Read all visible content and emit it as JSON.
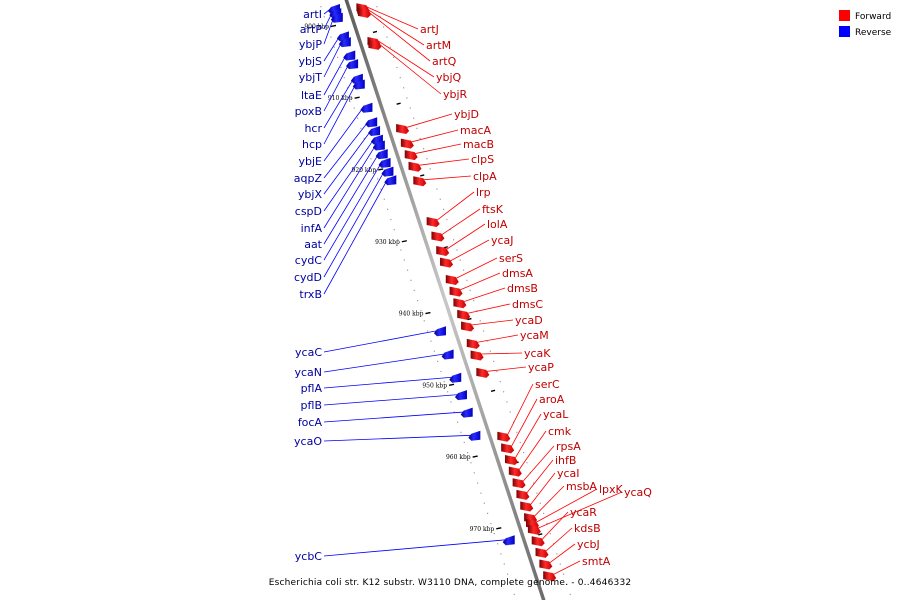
{
  "caption": "Escherichia coli str. K12 substr. W3110 DNA, complete genome. - 0..4646332",
  "legend": [
    {
      "label": "Forward",
      "color": "#ff0000"
    },
    {
      "label": "Reverse",
      "color": "#0000ff"
    }
  ],
  "colors": {
    "forward": "#ff0000",
    "reverse": "#0000ff",
    "backbone": "#808080"
  },
  "ticks": [
    {
      "label": "900 kbp",
      "frac": 0.0
    },
    {
      "label": "910 kbp",
      "frac": 0.1389
    },
    {
      "label": "920 kbp",
      "frac": 0.2778
    },
    {
      "label": "930 kbp",
      "frac": 0.4167
    },
    {
      "label": "940 kbp",
      "frac": 0.5556
    },
    {
      "label": "950 kbp",
      "frac": 0.6944
    },
    {
      "label": "960 kbp",
      "frac": 0.8333
    },
    {
      "label": "970 kbp",
      "frac": 0.9722
    }
  ],
  "reverse_genes": [
    {
      "name": "artI",
      "pos": 0.005
    },
    {
      "name": "artP",
      "pos": 0.012
    },
    {
      "name": "ybjP",
      "pos": 0.02
    },
    {
      "name": "ybjS",
      "pos": 0.052
    },
    {
      "name": "ybjT",
      "pos": 0.062
    },
    {
      "name": "ltaE",
      "pos": 0.085
    },
    {
      "name": "poxB",
      "pos": 0.1
    },
    {
      "name": "hcr",
      "pos": 0.125
    },
    {
      "name": "hcp",
      "pos": 0.135
    },
    {
      "name": "ybjE",
      "pos": 0.175
    },
    {
      "name": "aqpZ",
      "pos": 0.2
    },
    {
      "name": "ybjX",
      "pos": 0.215
    },
    {
      "name": "cspD",
      "pos": 0.23
    },
    {
      "name": "infA",
      "pos": 0.24
    },
    {
      "name": "aat",
      "pos": 0.255
    },
    {
      "name": "cydC",
      "pos": 0.27
    },
    {
      "name": "cydD",
      "pos": 0.285
    },
    {
      "name": "trxB",
      "pos": 0.3
    },
    {
      "name": "ycaC",
      "pos": 0.56
    },
    {
      "name": "ycaN",
      "pos": 0.6
    },
    {
      "name": "pflA",
      "pos": 0.64
    },
    {
      "name": "pflB",
      "pos": 0.67
    },
    {
      "name": "focA",
      "pos": 0.7
    },
    {
      "name": "ycaO",
      "pos": 0.74
    },
    {
      "name": "ycbC",
      "pos": 0.92
    }
  ],
  "forward_genes": [
    {
      "name": "artJ",
      "pos": 0.002
    },
    {
      "name": "artM",
      "pos": 0.006
    },
    {
      "name": "artQ",
      "pos": 0.01
    },
    {
      "name": "ybjQ",
      "pos": 0.06
    },
    {
      "name": "ybjR",
      "pos": 0.065
    },
    {
      "name": "ybjD",
      "pos": 0.21
    },
    {
      "name": "macA",
      "pos": 0.235
    },
    {
      "name": "macB",
      "pos": 0.255
    },
    {
      "name": "clpS",
      "pos": 0.275
    },
    {
      "name": "clpA",
      "pos": 0.3
    },
    {
      "name": "lrp",
      "pos": 0.37
    },
    {
      "name": "ftsK",
      "pos": 0.395
    },
    {
      "name": "lolA",
      "pos": 0.42
    },
    {
      "name": "ycaJ",
      "pos": 0.44
    },
    {
      "name": "serS",
      "pos": 0.47
    },
    {
      "name": "dmsA",
      "pos": 0.49
    },
    {
      "name": "dmsB",
      "pos": 0.51
    },
    {
      "name": "dmsC",
      "pos": 0.53
    },
    {
      "name": "ycaD",
      "pos": 0.55
    },
    {
      "name": "ycaM",
      "pos": 0.58
    },
    {
      "name": "ycaK",
      "pos": 0.6
    },
    {
      "name": "ycaP",
      "pos": 0.63
    },
    {
      "name": "serC",
      "pos": 0.74
    },
    {
      "name": "aroA",
      "pos": 0.76
    },
    {
      "name": "ycaL",
      "pos": 0.78
    },
    {
      "name": "cmk",
      "pos": 0.8
    },
    {
      "name": "rpsA",
      "pos": 0.82
    },
    {
      "name": "ihfB",
      "pos": 0.84
    },
    {
      "name": "ycaI",
      "pos": 0.86
    },
    {
      "name": "msbA",
      "pos": 0.88
    },
    {
      "name": "lpxK",
      "pos": 0.89
    },
    {
      "name": "ycaQ",
      "pos": 0.9
    },
    {
      "name": "ycaR",
      "pos": 0.92
    },
    {
      "name": "kdsB",
      "pos": 0.94
    },
    {
      "name": "ycbJ",
      "pos": 0.96
    },
    {
      "name": "smtA",
      "pos": 0.98
    }
  ]
}
